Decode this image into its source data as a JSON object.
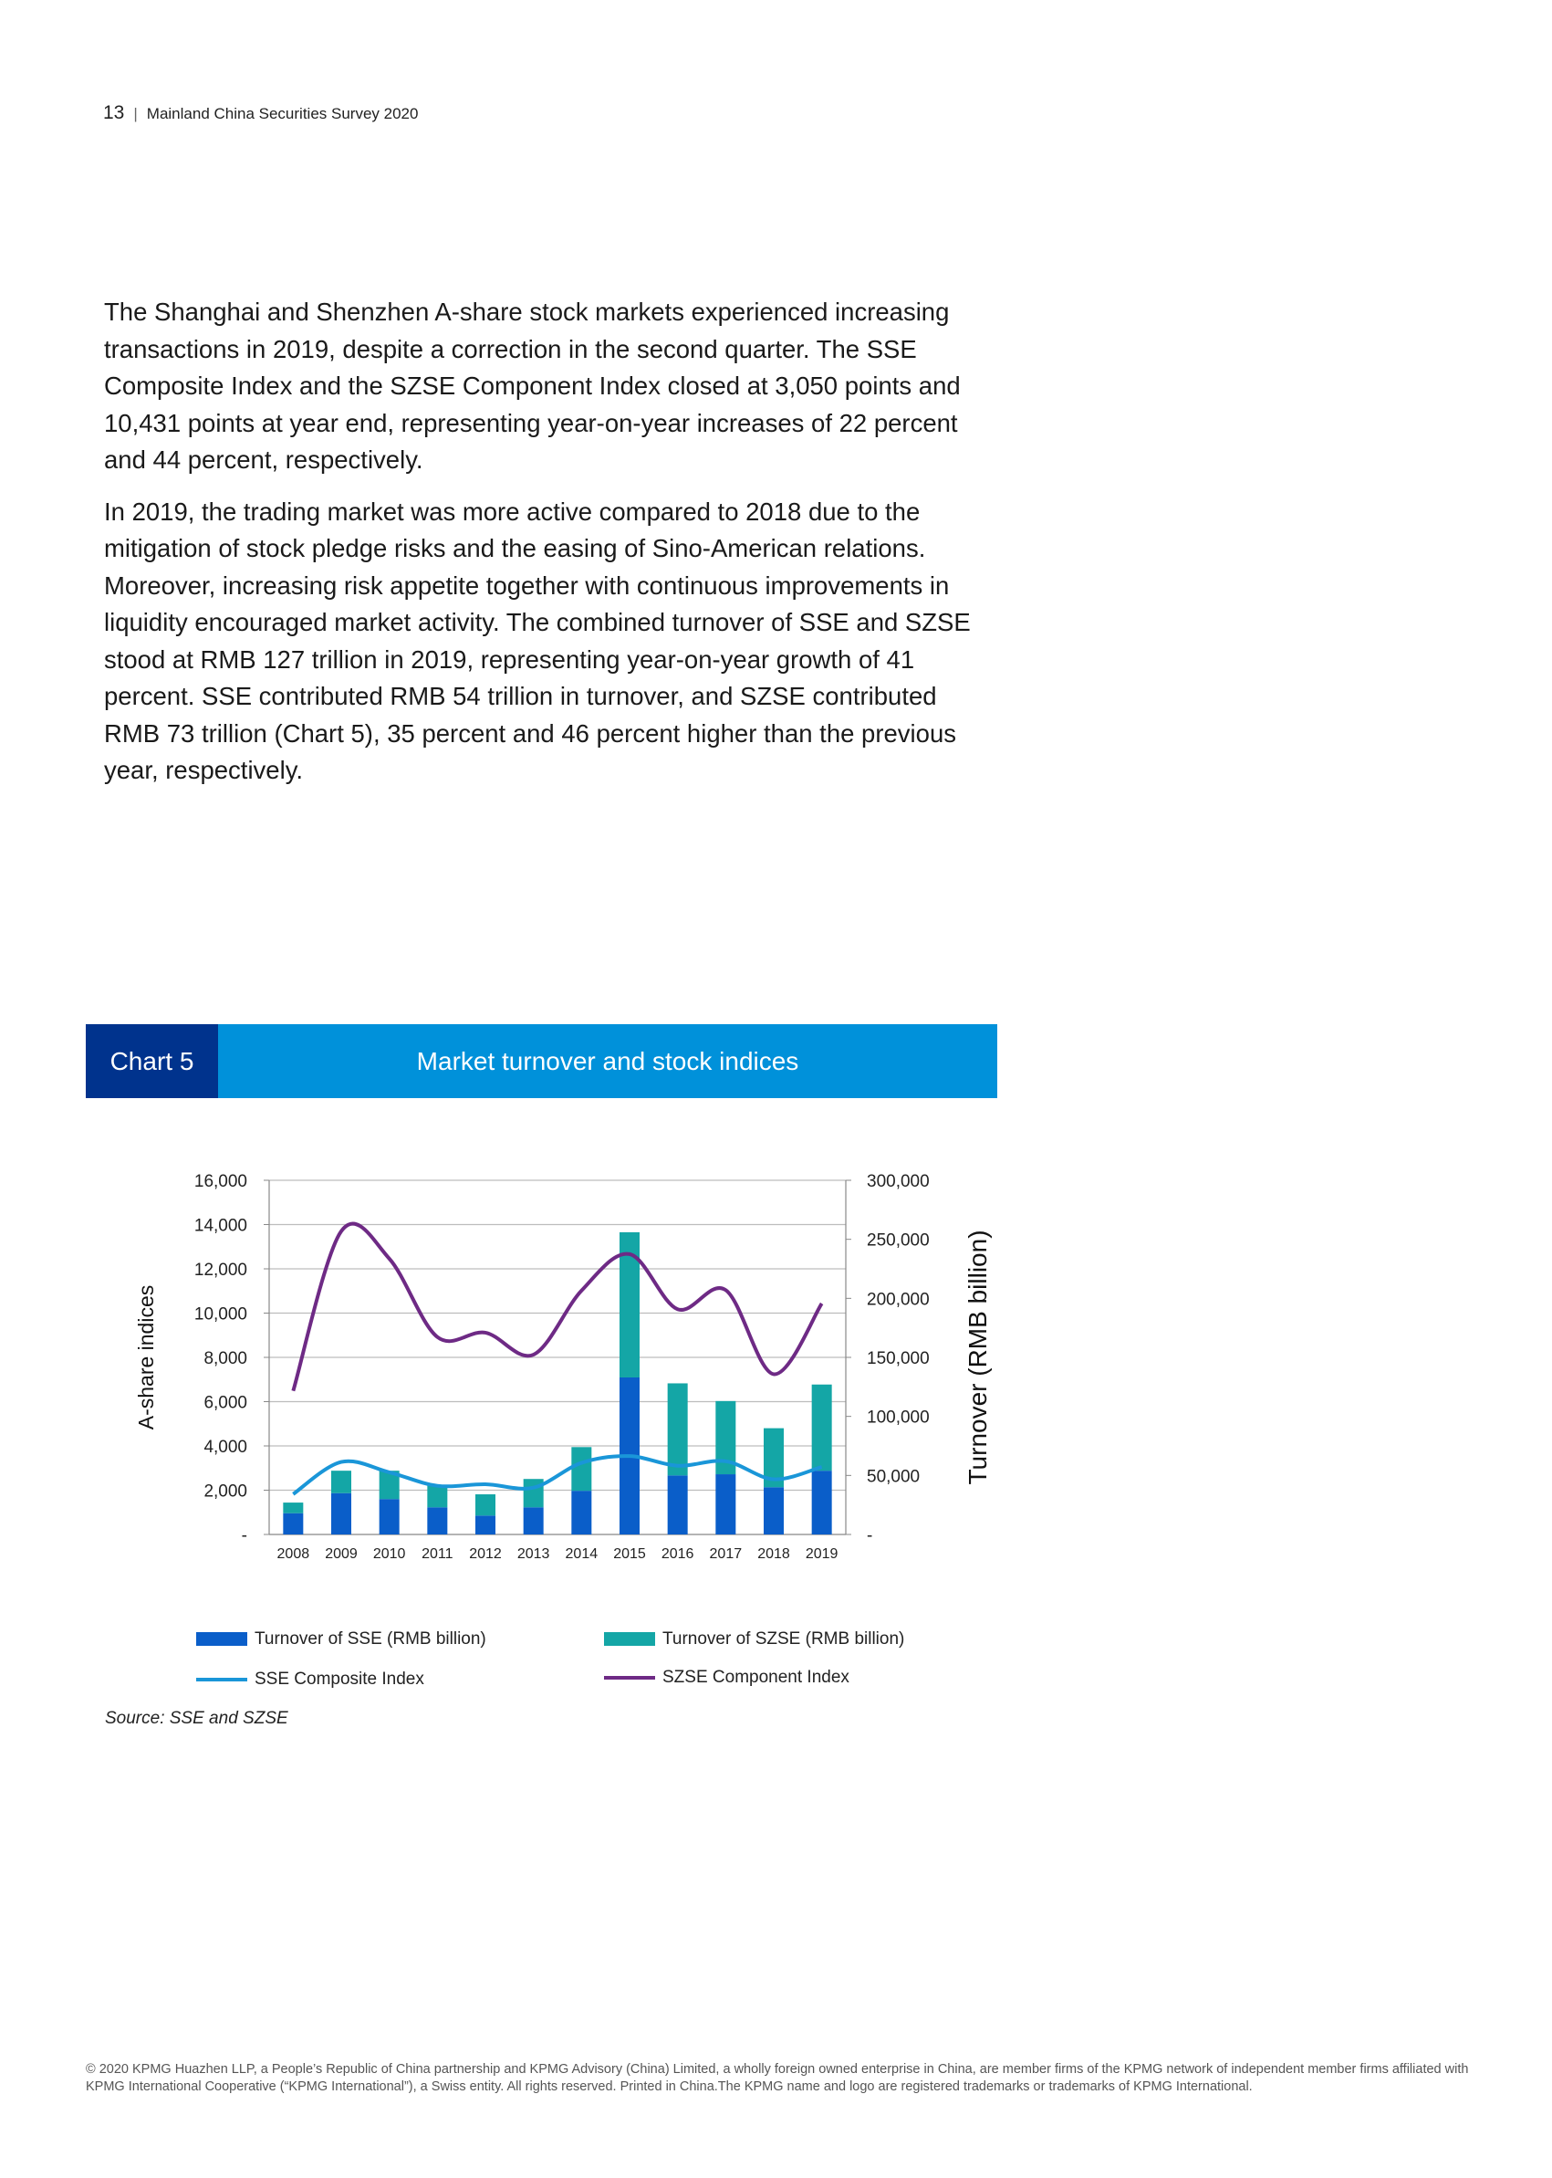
{
  "header": {
    "page_number": "13",
    "separator": "|",
    "title": "Mainland China Securities Survey 2020"
  },
  "body": {
    "paragraphs": [
      "The Shanghai and Shenzhen A-share stock markets experienced increasing transactions in 2019, despite a correction in the second quarter. The SSE Composite Index and the SZSE Component Index closed at 3,050 points and 10,431 points at year end, representing year-on-year increases of 22 percent and 44 percent, respectively.",
      "In 2019, the trading market was more active compared to 2018 due to the mitigation of stock pledge risks and the easing of Sino-American relations. Moreover, increasing risk appetite together with continuous improvements in liquidity encouraged market activity. The combined turnover of SSE and SZSE stood at RMB 127 trillion in 2019, representing year-on-year growth of 41 percent. SSE contributed RMB 54 trillion in turnover, and SZSE contributed RMB 73 trillion (Chart 5), 35 percent and 46 percent higher than the previous year, respectively."
    ]
  },
  "banner": {
    "tag": "Chart 5",
    "title": "Market turnover and stock indices"
  },
  "colors": {
    "tag_bg": "#00338d",
    "title_bg": "#0091da",
    "sse_bar": "#0a5ec9",
    "szse_bar": "#14a6a6",
    "sse_line": "#1a96d8",
    "szse_line": "#6e2a85"
  },
  "chart_data": {
    "type": "bar",
    "title": "Market turnover and stock indices",
    "categories": [
      "2008",
      "2009",
      "2010",
      "2011",
      "2012",
      "2013",
      "2014",
      "2015",
      "2016",
      "2017",
      "2018",
      "2019"
    ],
    "series": [
      {
        "name": "Turnover of SSE (RMB billion)",
        "type": "bar",
        "axis": "right",
        "stack": "turnover",
        "values": [
          18000,
          35000,
          30000,
          23000,
          16000,
          23000,
          37000,
          133000,
          50000,
          51000,
          40000,
          54000
        ]
      },
      {
        "name": "Turnover of SZSE (RMB billion)",
        "type": "bar",
        "axis": "right",
        "stack": "turnover",
        "values": [
          9000,
          19000,
          24000,
          19000,
          18000,
          24000,
          37000,
          123000,
          78000,
          62000,
          50000,
          73000
        ]
      },
      {
        "name": "SSE Composite Index",
        "type": "line",
        "axis": "left",
        "values": [
          1821,
          3277,
          2808,
          2199,
          2269,
          2116,
          3235,
          3539,
          3104,
          3307,
          2494,
          3050
        ]
      },
      {
        "name": "SZSE Component Index",
        "type": "line",
        "axis": "left",
        "values": [
          6486,
          13700,
          12459,
          8919,
          9116,
          8122,
          11015,
          12665,
          10177,
          11040,
          7240,
          10431
        ]
      }
    ],
    "ylabel": "A-share indices",
    "y2label": "Turnover (RMB billion)",
    "ylim": [
      0,
      16000
    ],
    "y2lim": [
      0,
      300000
    ],
    "yticks": [
      "-",
      "2,000",
      "4,000",
      "6,000",
      "8,000",
      "10,000",
      "12,000",
      "14,000",
      "16,000"
    ],
    "y2ticks": [
      "-",
      "50,000",
      "100,000",
      "150,000",
      "200,000",
      "250,000",
      "300,000"
    ],
    "grid": true,
    "legend": "bottom"
  },
  "source": "Source: SSE and SZSE",
  "footer": "© 2020 KPMG Huazhen LLP, a People’s Republic of China partnership and KPMG Advisory (China) Limited, a wholly foreign owned enterprise in China,  are member firms of the KPMG network of independent member firms affiliated with KPMG International Cooperative (“KPMG International”), a Swiss entity. All rights reserved. Printed in China.The KPMG name and logo are registered trademarks or trademarks of KPMG International."
}
